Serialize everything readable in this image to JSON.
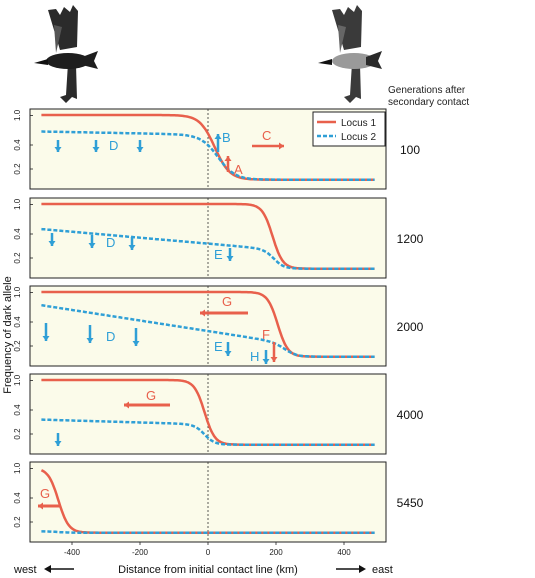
{
  "header": {
    "line1": "Generations after",
    "line2": "secondary contact"
  },
  "legend": {
    "locus1": "Locus 1",
    "locus2": "Locus 2"
  },
  "colors": {
    "locus1": "#e8604c",
    "locus2": "#2f9fd6",
    "panel_bg": "#fbfbea",
    "arrow_red": "#e8604c",
    "arrow_blue": "#2f9fd6"
  },
  "y_axis_label": "Frequency of dark allele",
  "x_axis_label": "Distance from initial contact line (km)",
  "direction": {
    "west": "west",
    "east": "east"
  },
  "icons": [
    "crow-bird-icon",
    "hooded-crow-bird-icon"
  ],
  "chart_data": {
    "type": "line",
    "xlim": [
      -500,
      500
    ],
    "ylim": [
      0,
      1
    ],
    "y_ticks": [
      "1.0",
      "0.4",
      "0.2"
    ],
    "x_ticks": [
      "-400",
      "-200",
      "0",
      "200",
      "400"
    ],
    "panels": [
      {
        "generations": "100",
        "series": [
          {
            "name": "Locus 1",
            "left": 1.0,
            "right": 0.02,
            "center": 20,
            "width": 22
          },
          {
            "name": "Locus 2",
            "left": 0.75,
            "right": 0.02,
            "slope": 0.0001,
            "center": 30,
            "width": 25
          }
        ],
        "labels": [
          "B",
          "C",
          "A",
          "D"
        ]
      },
      {
        "generations": "1200",
        "series": [
          {
            "name": "Locus 1",
            "left": 1.0,
            "right": 0.02,
            "center": 190,
            "width": 15
          },
          {
            "name": "Locus 2",
            "left": 0.62,
            "right": 0.02,
            "slope": 0.00045,
            "center": 195,
            "width": 15
          }
        ],
        "labels": [
          "D",
          "E"
        ]
      },
      {
        "generations": "2000",
        "series": [
          {
            "name": "Locus 1",
            "left": 1.0,
            "right": 0.02,
            "center": 205,
            "width": 15
          },
          {
            "name": "Locus 2",
            "left": 0.8,
            "right": 0.02,
            "slope": 0.0008,
            "center": 230,
            "width": 18
          }
        ],
        "labels": [
          "G",
          "F",
          "D",
          "E",
          "H"
        ]
      },
      {
        "generations": "4000",
        "series": [
          {
            "name": "Locus 1",
            "left": 1.0,
            "right": 0.02,
            "center": -10,
            "width": 15
          },
          {
            "name": "Locus 2",
            "left": 0.4,
            "right": 0.02,
            "slope": 0.00015,
            "center": -10,
            "width": 15
          }
        ],
        "labels": [
          "G"
        ]
      },
      {
        "generations": "5450",
        "series": [
          {
            "name": "Locus 1",
            "left": 1.0,
            "right": 0.02,
            "center": -440,
            "width": 15
          },
          {
            "name": "Locus 2",
            "left": 0.04,
            "right": 0.02,
            "center": -440,
            "width": 15
          }
        ],
        "labels": [
          "G"
        ]
      }
    ]
  }
}
